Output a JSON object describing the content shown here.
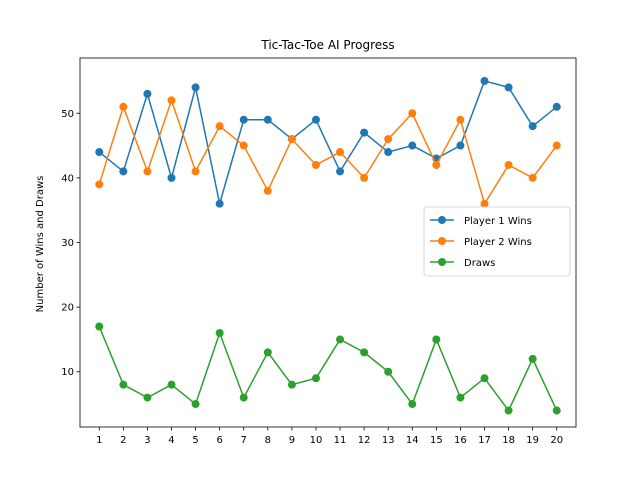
{
  "chart_data": {
    "type": "line",
    "title": "Tic-Tac-Toe AI Progress",
    "xlabel": "",
    "ylabel": "Number of Wins and Draws",
    "x": [
      1,
      2,
      3,
      4,
      5,
      6,
      7,
      8,
      9,
      10,
      11,
      12,
      13,
      14,
      15,
      16,
      17,
      18,
      19,
      20
    ],
    "xlim": [
      0.2,
      20.8
    ],
    "ylim": [
      1.45,
      58.55
    ],
    "yticks": [
      10,
      20,
      30,
      40,
      50
    ],
    "grid": false,
    "legend_position": "center-right",
    "series": [
      {
        "name": "Player 1 Wins",
        "color": "#1f77b4",
        "values": [
          44,
          41,
          53,
          40,
          54,
          36,
          49,
          49,
          46,
          49,
          41,
          47,
          44,
          45,
          43,
          45,
          55,
          54,
          48,
          51
        ]
      },
      {
        "name": "Player 2 Wins",
        "color": "#ff7f0e",
        "values": [
          39,
          51,
          41,
          52,
          41,
          48,
          45,
          38,
          46,
          42,
          44,
          40,
          46,
          50,
          42,
          49,
          36,
          42,
          40,
          45
        ]
      },
      {
        "name": "Draws",
        "color": "#2ca02c",
        "values": [
          17,
          8,
          6,
          8,
          5,
          16,
          6,
          13,
          8,
          9,
          15,
          13,
          10,
          5,
          15,
          6,
          9,
          4,
          12,
          4
        ]
      }
    ]
  }
}
